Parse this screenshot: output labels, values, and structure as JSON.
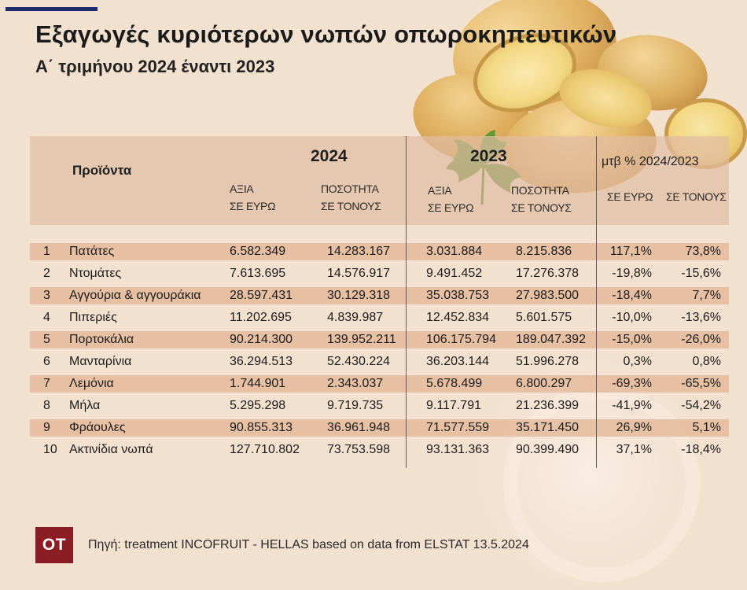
{
  "title": "Εξαγωγές κυριότερων νωπών οπωροκηπευτικών",
  "subtitle": "Α΄ τριμήνου 2024 έναντι 2023",
  "colors": {
    "background": "#f3e1d0",
    "accent_line": "#1f2c6b",
    "header_band": "#e2bea2",
    "row_stripe": "#e4ba9c",
    "logo_bg": "#8c1c24"
  },
  "decorations": [
    "potatoes-image",
    "parsley-leaf-image"
  ],
  "table": {
    "products_header": "Προϊόντα",
    "year_2024": "2024",
    "year_2023": "2023",
    "mtb_header": "μτβ % 2024/2023",
    "value_label_line1": "ΑΞΙΑ",
    "value_label_line2": "ΣΕ ΕΥΡΩ",
    "qty_label_line1": "ΠΟΣΟΤΗΤΑ",
    "qty_label_line2": "ΣΕ ΤΟΝΟΥΣ",
    "pct_value_label": "ΣΕ ΕΥΡΩ",
    "pct_qty_label": "ΣΕ ΤΟΝΟΥΣ"
  },
  "chart_data": {
    "type": "table",
    "title": "Εξαγωγές κυριότερων νωπών οπωροκηπευτικών",
    "subtitle": "Α΄ τριμήνου 2024 έναντι 2023",
    "columns": [
      "",
      "Προϊόντα",
      "2024 ΑΞΙΑ ΣΕ ΕΥΡΩ",
      "2024 ΠΟΣΟΤΗΤΑ ΣΕ ΤΟΝΟΥΣ",
      "2023 ΑΞΙΑ ΣΕ ΕΥΡΩ",
      "2023 ΠΟΣΟΤΗΤΑ ΣΕ ΤΟΝΟΥΣ",
      "μτβ % ΣΕ ΕΥΡΩ",
      "μτβ % ΣΕ ΤΟΝΟΥΣ"
    ],
    "rows": [
      {
        "n": "1",
        "product": "Πατάτες",
        "value_2024": "6.582.349",
        "qty_2024": "14.283.167",
        "value_2023": "3.031.884",
        "qty_2023": "8.215.836",
        "pct_value": "117,1%",
        "pct_qty": "73,8%"
      },
      {
        "n": "2",
        "product": "Ντομάτες",
        "value_2024": "7.613.695",
        "qty_2024": "14.576.917",
        "value_2023": "9.491.452",
        "qty_2023": "17.276.378",
        "pct_value": "-19,8%",
        "pct_qty": "-15,6%"
      },
      {
        "n": "3",
        "product": "Αγγούρια & αγγουράκια",
        "value_2024": "28.597.431",
        "qty_2024": "30.129.318",
        "value_2023": "35.038.753",
        "qty_2023": "27.983.500",
        "pct_value": "-18,4%",
        "pct_qty": "7,7%"
      },
      {
        "n": "4",
        "product": "Πιπεριές",
        "value_2024": "11.202.695",
        "qty_2024": "4.839.987",
        "value_2023": "12.452.834",
        "qty_2023": "5.601.575",
        "pct_value": "-10,0%",
        "pct_qty": "-13,6%"
      },
      {
        "n": "5",
        "product": "Πορτοκάλια",
        "value_2024": "90.214.300",
        "qty_2024": "139.952.211",
        "value_2023": "106.175.794",
        "qty_2023": "189.047.392",
        "pct_value": "-15,0%",
        "pct_qty": "-26,0%"
      },
      {
        "n": "6",
        "product": "Μανταρίνια",
        "value_2024": "36.294.513",
        "qty_2024": "52.430.224",
        "value_2023": "36.203.144",
        "qty_2023": "51.996.278",
        "pct_value": "0,3%",
        "pct_qty": "0,8%"
      },
      {
        "n": "7",
        "product": "Λεμόνια",
        "value_2024": "1.744.901",
        "qty_2024": "2.343.037",
        "value_2023": "5.678.499",
        "qty_2023": "6.800.297",
        "pct_value": "-69,3%",
        "pct_qty": "-65,5%"
      },
      {
        "n": "8",
        "product": "Μήλα",
        "value_2024": "5.295.298",
        "qty_2024": "9.719.735",
        "value_2023": "9.117.791",
        "qty_2023": "21.236.399",
        "pct_value": "-41,9%",
        "pct_qty": "-54,2%"
      },
      {
        "n": "9",
        "product": "Φράουλες",
        "value_2024": "90.855.313",
        "qty_2024": "36.961.948",
        "value_2023": "71.577.559",
        "qty_2023": "35.171.450",
        "pct_value": "26,9%",
        "pct_qty": "5,1%"
      },
      {
        "n": "10",
        "product": "Ακτινίδια νωπά",
        "value_2024": "127.710.802",
        "qty_2024": "73.753.598",
        "value_2023": "93.131.363",
        "qty_2023": "90.399.490",
        "pct_value": "37,1%",
        "pct_qty": "-18,4%"
      }
    ]
  },
  "footer": {
    "logo_text": "OT",
    "source": "Πηγή: treatment INCOFRUIT - HELLAS based on data from ELSTAT 13.5.2024"
  }
}
